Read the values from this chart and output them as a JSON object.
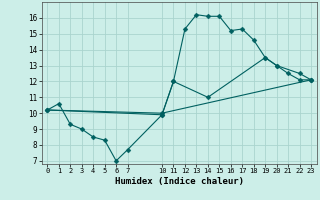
{
  "xlabel": "Humidex (Indice chaleur)",
  "bg_color": "#cceee8",
  "grid_color": "#aad4ce",
  "line_color": "#006060",
  "line1": {
    "x": [
      0,
      1,
      2,
      3,
      4,
      5,
      6,
      7,
      10,
      11,
      12,
      13,
      14,
      15,
      16,
      17,
      18,
      19,
      20,
      21,
      22,
      23
    ],
    "y": [
      10.2,
      10.6,
      9.3,
      9.0,
      8.5,
      8.3,
      7.0,
      7.7,
      9.9,
      12.0,
      15.3,
      16.2,
      16.1,
      16.1,
      15.2,
      15.3,
      14.6,
      13.5,
      13.0,
      12.5,
      12.1,
      12.1
    ]
  },
  "line2": {
    "x": [
      0,
      10,
      11,
      14,
      19,
      20,
      22,
      23
    ],
    "y": [
      10.2,
      9.9,
      12.0,
      11.0,
      13.5,
      13.0,
      12.5,
      12.1
    ]
  },
  "line3": {
    "x": [
      0,
      10,
      23
    ],
    "y": [
      10.2,
      10.0,
      12.1
    ]
  },
  "xlim": [
    -0.5,
    23.5
  ],
  "ylim": [
    6.8,
    17.0
  ],
  "xticks": [
    0,
    1,
    2,
    3,
    4,
    5,
    6,
    7,
    10,
    11,
    12,
    13,
    14,
    15,
    16,
    17,
    18,
    19,
    20,
    21,
    22,
    23
  ],
  "yticks": [
    7,
    8,
    9,
    10,
    11,
    12,
    13,
    14,
    15,
    16
  ]
}
